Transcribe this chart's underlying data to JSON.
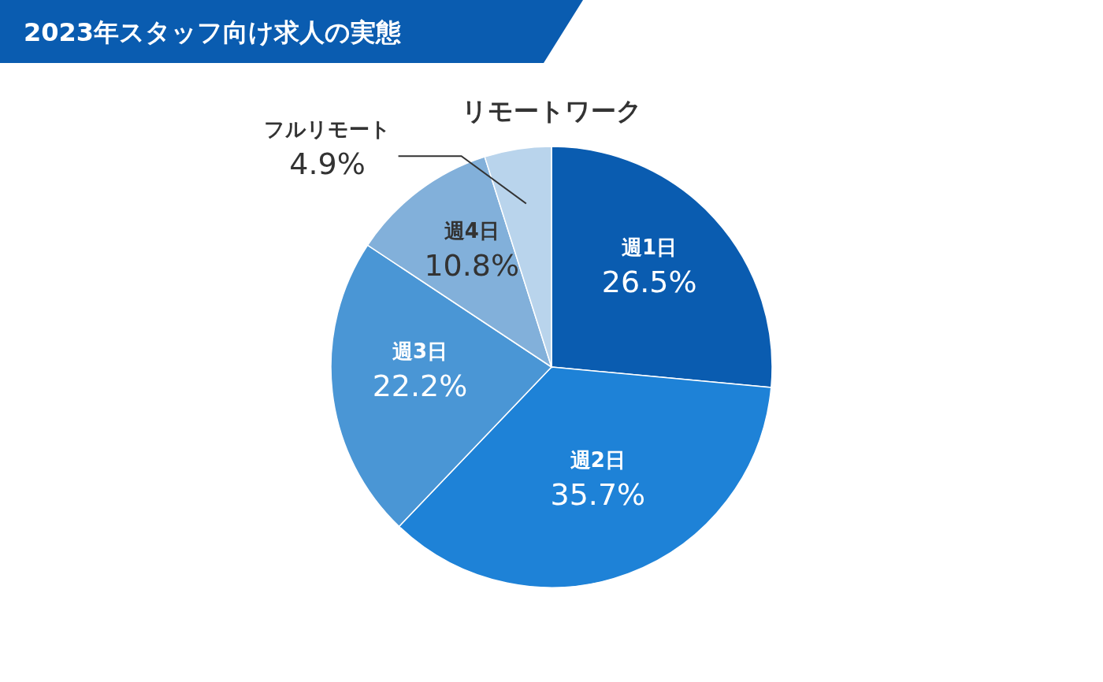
{
  "chart_data": {
    "type": "pie",
    "title": "2023年スタッフ向け求人の実態",
    "subtitle": "リモートワーク",
    "categories": [
      "週1日",
      "週2日",
      "週3日",
      "週4日",
      "フルリモート"
    ],
    "values": [
      26.5,
      35.7,
      22.2,
      10.8,
      4.9
    ],
    "value_labels": [
      "26.5%",
      "35.7%",
      "22.2%",
      "10.8%",
      "4.9%"
    ],
    "colors": [
      "#0a5cb0",
      "#1e82d7",
      "#4a96d5",
      "#82b0da",
      "#b9d4ec"
    ]
  }
}
